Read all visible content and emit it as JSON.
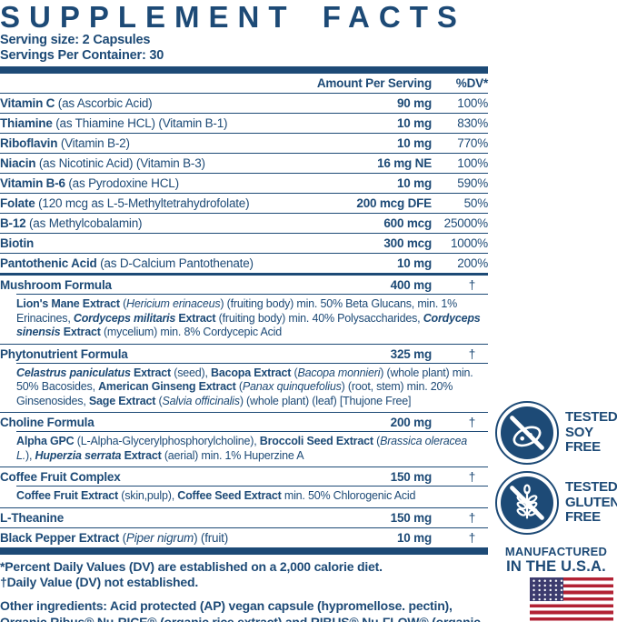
{
  "ink": "#1d4a76",
  "title": "SUPPLEMENT FACTS",
  "serving": {
    "size": "Serving size: 2 Capsules",
    "per_container": "Servings Per Container: 30"
  },
  "table": {
    "col_amount": "Amount Per Serving",
    "col_dv": "%DV*",
    "rows": [
      {
        "name": [
          [
            "Vitamin C ",
            1,
            0
          ],
          [
            "(as Ascorbic Acid)",
            0,
            0
          ]
        ],
        "amount": "90 mg",
        "dv": "100%"
      },
      {
        "name": [
          [
            "Thiamine ",
            1,
            0
          ],
          [
            "(as Thiamine HCL) (Vitamin B-1)",
            0,
            0
          ]
        ],
        "amount": "10 mg",
        "dv": "830%"
      },
      {
        "name": [
          [
            "Riboflavin ",
            1,
            0
          ],
          [
            "(Vitamin B-2)",
            0,
            0
          ]
        ],
        "amount": "10 mg",
        "dv": "770%"
      },
      {
        "name": [
          [
            "Niacin ",
            1,
            0
          ],
          [
            "(as Nicotinic Acid) (Vitamin B-3)",
            0,
            0
          ]
        ],
        "amount": "16 mg NE",
        "dv": "100%"
      },
      {
        "name": [
          [
            "Vitamin B-6 ",
            1,
            0
          ],
          [
            "(as Pyrodoxine HCL)",
            0,
            0
          ]
        ],
        "amount": "10 mg",
        "dv": "590%"
      },
      {
        "name": [
          [
            "Folate ",
            1,
            0
          ],
          [
            "(120 mcg as L-5-Methyltetrahydrofolate)",
            0,
            0
          ]
        ],
        "amount": "200 mcg DFE",
        "dv": "50%"
      },
      {
        "name": [
          [
            "B-12 ",
            1,
            0
          ],
          [
            "(as Methylcobalamin)",
            0,
            0
          ]
        ],
        "amount": "600 mcg",
        "dv": "25000%"
      },
      {
        "name": [
          [
            "Biotin",
            1,
            0
          ]
        ],
        "amount": "300 mcg",
        "dv": "1000%"
      },
      {
        "name": [
          [
            "Pantothenic Acid ",
            1,
            0
          ],
          [
            "(as D-Calcium Pantothenate)",
            0,
            0
          ]
        ],
        "amount": "10 mg",
        "dv": "200%",
        "divider": "thick"
      },
      {
        "name": [
          [
            "Mushroom Formula",
            1,
            0
          ]
        ],
        "amount": "400 mg",
        "dv": "†",
        "sub": [
          [
            "Lion's Mane Extract ",
            1,
            0
          ],
          [
            "(",
            0,
            0
          ],
          [
            "Hericium erinaceus",
            0,
            1
          ],
          [
            ") (fruiting body) min. 50% Beta Glucans, min. 1% Erinacines, ",
            0,
            0
          ],
          [
            "Cordyceps militaris",
            1,
            1
          ],
          [
            " Extract ",
            1,
            0
          ],
          [
            "(fruiting body) min. 40% Polysaccharides, ",
            0,
            0
          ],
          [
            "Cordyceps sinensis",
            1,
            1
          ],
          [
            " Extract ",
            1,
            0
          ],
          [
            "(mycelium) min. 8% Cordycepic Acid",
            0,
            0
          ]
        ]
      },
      {
        "name": [
          [
            "Phytonutrient Formula",
            1,
            0
          ]
        ],
        "amount": "325 mg",
        "dv": "†",
        "sub": [
          [
            "Celastrus paniculatus",
            1,
            1
          ],
          [
            " Extract ",
            1,
            0
          ],
          [
            "(seed), ",
            0,
            0
          ],
          [
            "Bacopa Extract ",
            1,
            0
          ],
          [
            "(",
            0,
            0
          ],
          [
            "Bacopa monnieri",
            0,
            1
          ],
          [
            ") (whole plant) min. 50% Bacosides, ",
            0,
            0
          ],
          [
            "American Ginseng Extract ",
            1,
            0
          ],
          [
            "(",
            0,
            0
          ],
          [
            "Panax quinquefolius",
            0,
            1
          ],
          [
            ") (root, stem) min. 20% Ginsenosides, ",
            0,
            0
          ],
          [
            "Sage Extract ",
            1,
            0
          ],
          [
            "(",
            0,
            0
          ],
          [
            "Salvia officinalis",
            0,
            1
          ],
          [
            ") (whole plant) (leaf) [Thujone Free]",
            0,
            0
          ]
        ]
      },
      {
        "name": [
          [
            "Choline Formula",
            1,
            0
          ]
        ],
        "amount": "200 mg",
        "dv": "†",
        "sub": [
          [
            "Alpha GPC ",
            1,
            0
          ],
          [
            "(L-Alpha-Glycerylphosphorylcholine), ",
            0,
            0
          ],
          [
            "Broccoli Seed Extract ",
            1,
            0
          ],
          [
            "(",
            0,
            0
          ],
          [
            "Brassica oleracea L.",
            0,
            1
          ],
          [
            "), ",
            0,
            0
          ],
          [
            "Huperzia serrata",
            1,
            1
          ],
          [
            " Extract ",
            1,
            0
          ],
          [
            "(aerial) min. 1% Huperzine A",
            0,
            0
          ]
        ]
      },
      {
        "name": [
          [
            "Coffee Fruit Complex",
            1,
            0
          ]
        ],
        "amount": "150 mg",
        "dv": "†",
        "sub": [
          [
            "Coffee Fruit Extract ",
            1,
            0
          ],
          [
            "(skin,pulp), ",
            0,
            0
          ],
          [
            "Coffee Seed Extract ",
            1,
            0
          ],
          [
            "min. 50% Chlorogenic Acid",
            0,
            0
          ]
        ]
      },
      {
        "name": [
          [
            "L-Theanine",
            1,
            0
          ]
        ],
        "amount": "150 mg",
        "dv": "†"
      },
      {
        "name": [
          [
            "Black Pepper Extract ",
            1,
            0
          ],
          [
            "(",
            0,
            0
          ],
          [
            "Piper nigrum",
            0,
            1
          ],
          [
            ") (fruit)",
            0,
            0
          ]
        ],
        "amount": "10 mg",
        "dv": "†",
        "divider": "none"
      }
    ]
  },
  "footnotes": {
    "dv_note": "*Percent Daily Values (DV) are established on a 2,000 calorie diet.",
    "dagger_note": "†Daily Value (DV) not established.",
    "other_ingredients": "Other ingredients: Acid protected (AP) vegan capsule (hypromellose. pectin), Organic Ribus® Nu-RICE® (organic rice extract) and RIBUS® Nu-FLOW® (organic rice fiber)."
  },
  "badges": [
    {
      "id": "soy-free",
      "line1": "TESTED",
      "line2": "SOY",
      "line3": "FREE"
    },
    {
      "id": "gluten-free",
      "line1": "TESTED",
      "line2": "GLUTEN",
      "line3": "FREE"
    }
  ],
  "made_in": {
    "line1": "MANUFACTURED",
    "line2": "IN THE U.S.A."
  },
  "flag": {
    "red": "#b22234",
    "blue": "#3c3b6e",
    "white": "#ffffff"
  }
}
